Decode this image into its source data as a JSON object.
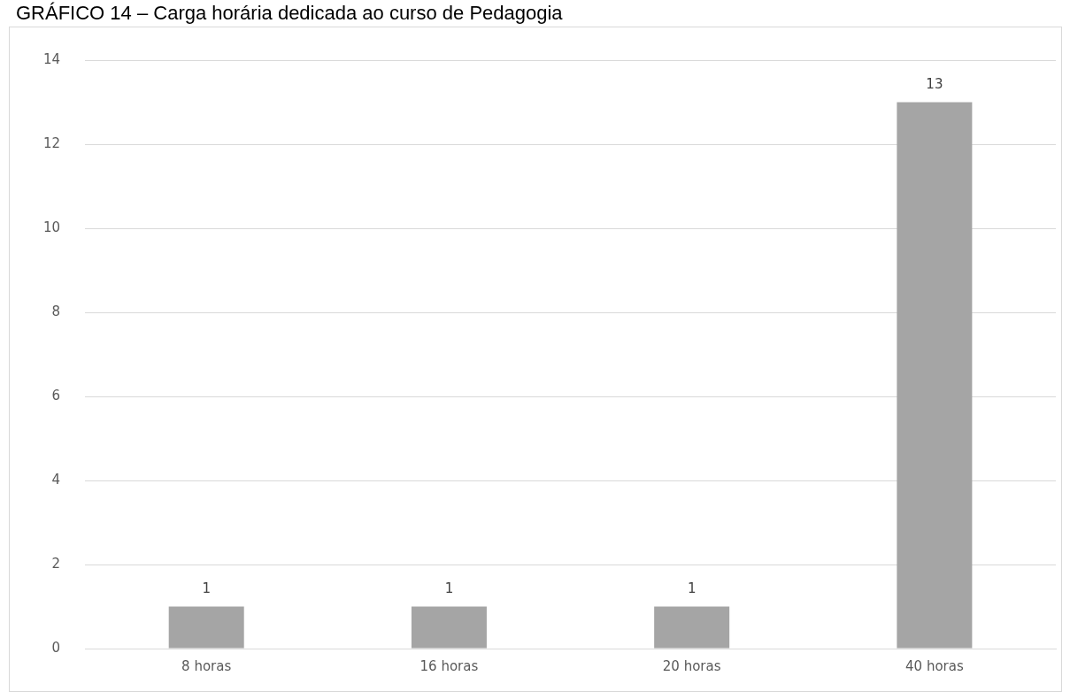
{
  "chart_data": {
    "type": "bar",
    "title": "GRÁFICO 14 – Carga horária dedicada ao curso de Pedagogia",
    "categories": [
      "8 horas",
      "16 horas",
      "20 horas",
      "40 horas"
    ],
    "values": [
      1,
      1,
      1,
      13
    ],
    "color": "#a5a5a5",
    "ylim": [
      0,
      14
    ],
    "yticks": [
      0,
      2,
      4,
      6,
      8,
      10,
      12,
      14
    ],
    "grid": "y",
    "data_labels": true,
    "legend": false
  }
}
